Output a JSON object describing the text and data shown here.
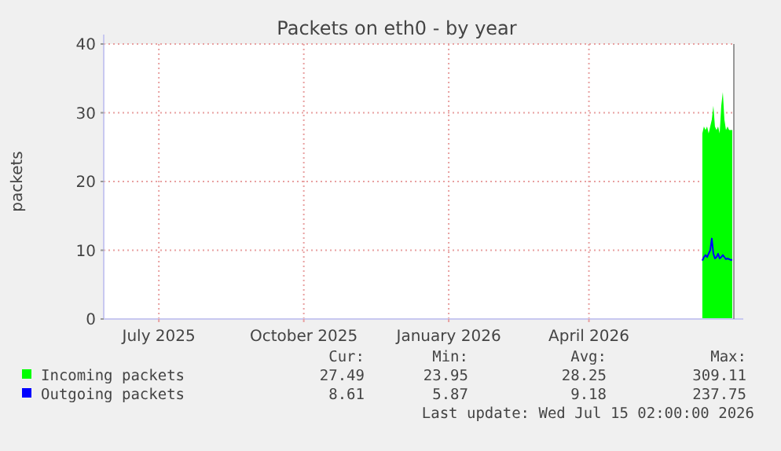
{
  "chart_data": {
    "type": "area",
    "title": "Packets on eth0 - by year",
    "ylabel": "packets",
    "x": [
      "2026-06-26",
      "2026-06-27",
      "2026-06-28",
      "2026-06-29",
      "2026-06-30",
      "2026-07-01",
      "2026-07-02",
      "2026-07-03",
      "2026-07-04",
      "2026-07-05",
      "2026-07-06",
      "2026-07-07",
      "2026-07-08",
      "2026-07-09",
      "2026-07-10",
      "2026-07-11",
      "2026-07-12",
      "2026-07-13",
      "2026-07-14",
      "2026-07-15"
    ],
    "series": [
      {
        "name": "Incoming packets",
        "color": "#00ff00",
        "values": [
          27,
          28,
          27.5,
          28,
          27,
          28,
          29,
          31,
          28,
          27.5,
          28,
          27,
          31,
          33,
          29,
          27.5,
          28,
          27.5,
          27.5,
          27.5
        ]
      },
      {
        "name": "Outgoing packets",
        "type": "line",
        "color": "#0000ff",
        "values": [
          8.5,
          9,
          9.3,
          9,
          9.5,
          10,
          11.7,
          9.5,
          8.8,
          9,
          9.5,
          8.8,
          9,
          9.3,
          9,
          8.7,
          8.8,
          8.7,
          8.6,
          8.6
        ]
      }
    ],
    "xlim": [
      "2025-06-11",
      "2026-07-16"
    ],
    "xticks": [
      {
        "value": "2025-07-16",
        "label": "July 2025"
      },
      {
        "value": "2025-10-16",
        "label": "October 2025"
      },
      {
        "value": "2026-01-16",
        "label": "January 2026"
      },
      {
        "value": "2026-04-15",
        "label": "April 2026"
      }
    ],
    "ylim": [
      0,
      40
    ],
    "yticks": [
      0,
      10,
      20,
      30,
      40
    ],
    "grid": true,
    "legend": "bottom left",
    "annotations": [
      "Cur:",
      "Min:",
      "Avg:",
      "Max:",
      "27.49",
      "23.95",
      "28.25",
      "309.11",
      "8.61",
      "5.87",
      "9.18",
      "237.75",
      "Last update: Wed Jul 15 02:00:00 2026"
    ]
  }
}
